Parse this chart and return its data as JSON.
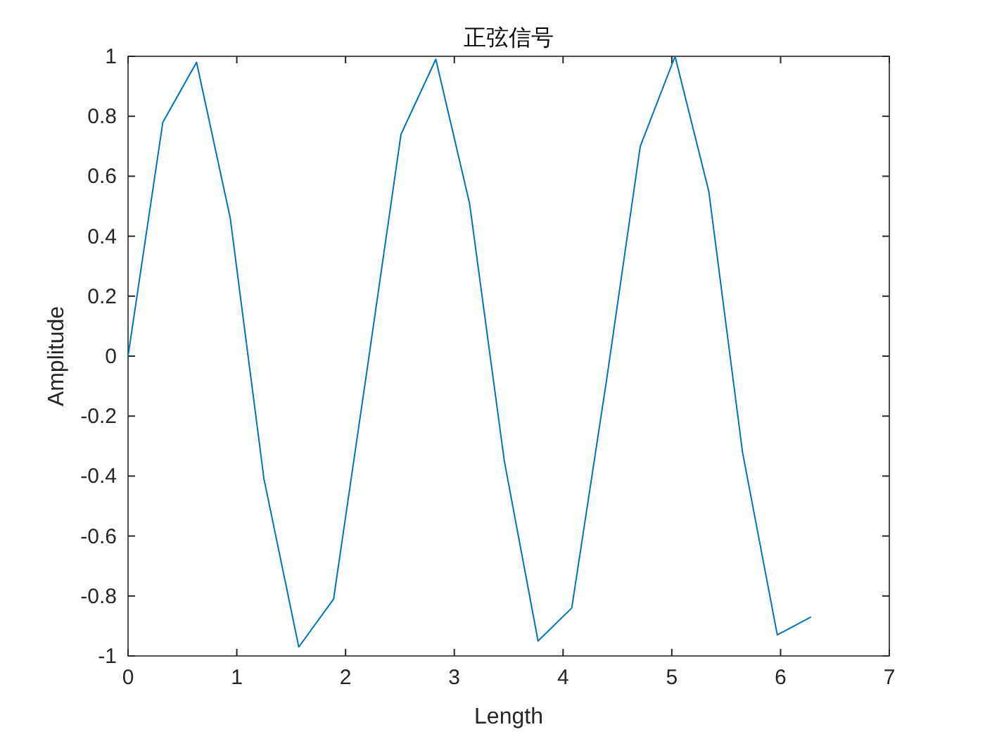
{
  "chart_data": {
    "type": "line",
    "title": "正弦信号",
    "xlabel": "Length",
    "ylabel": "Amplitude",
    "x": [
      0,
      0.32,
      0.63,
      0.94,
      1.25,
      1.57,
      1.89,
      2.2,
      2.51,
      2.83,
      3.14,
      3.46,
      3.77,
      4.08,
      4.4,
      4.71,
      5.03,
      5.34,
      5.65,
      5.97,
      6.28
    ],
    "series": [
      {
        "color": "#0072bd",
        "values": [
          0,
          0.78,
          0.98,
          0.46,
          -0.41,
          -0.97,
          -0.81,
          -0.04,
          0.74,
          0.99,
          0.51,
          -0.35,
          -0.95,
          -0.84,
          -0.08,
          0.7,
          1.0,
          0.55,
          -0.32,
          -0.93,
          -0.87
        ]
      }
    ],
    "xlim": [
      0,
      7
    ],
    "ylim": [
      -1,
      1
    ],
    "xticks": [
      0,
      1,
      2,
      3,
      4,
      5,
      6,
      7
    ],
    "yticks": [
      -1,
      -0.8,
      -0.6,
      -0.4,
      -0.2,
      0,
      0.2,
      0.4,
      0.6,
      0.8,
      1
    ]
  }
}
